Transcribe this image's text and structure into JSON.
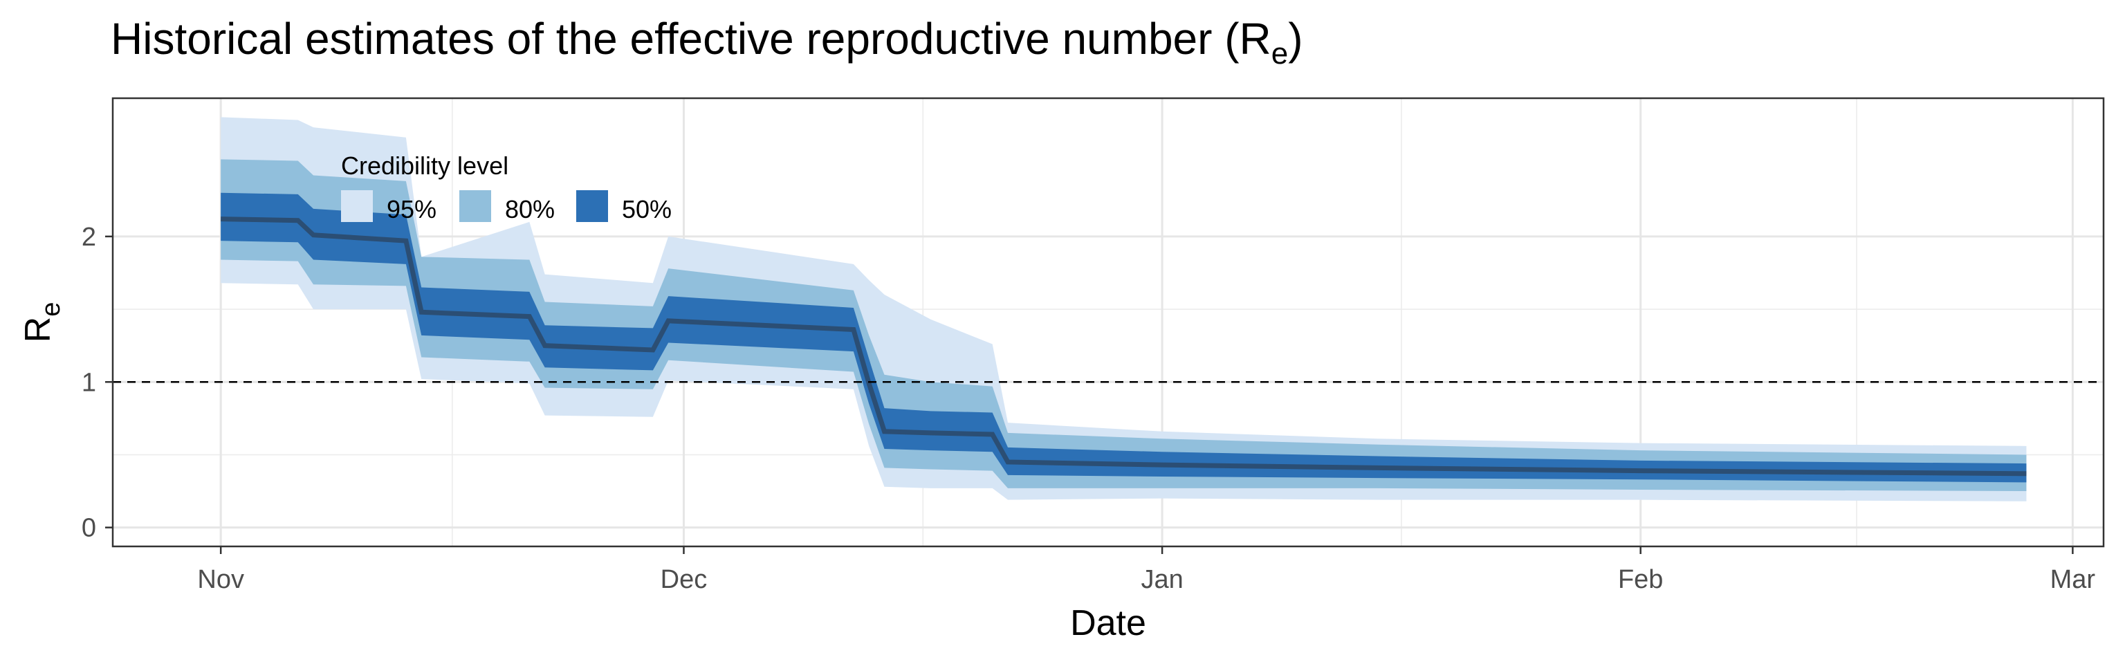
{
  "chart_data": {
    "type": "area",
    "title": "Historical estimates of the effective reproductive number (R",
    "title_subscript": "e",
    "title_close": ")",
    "xlabel": "Date",
    "ylabel": "R",
    "ylabel_subscript": "e",
    "x_ticks": [
      {
        "label": "Nov",
        "date": "2020-11-01"
      },
      {
        "label": "Dec",
        "date": "2020-12-01"
      },
      {
        "label": "Jan",
        "date": "2021-01-01"
      },
      {
        "label": "Feb",
        "date": "2021-02-01"
      },
      {
        "label": "Mar",
        "date": "2021-03-01"
      }
    ],
    "xlim": [
      "2020-10-25",
      "2021-03-03"
    ],
    "y_ticks": [
      0,
      1,
      2
    ],
    "ylim": [
      -0.13,
      2.95
    ],
    "reference_line": {
      "y": 1,
      "style": "dashed"
    },
    "grid": true,
    "legend": {
      "title": "Credibility level",
      "placement": "top-left",
      "entries": [
        {
          "label": "95%",
          "color": "#d6e5f5"
        },
        {
          "label": "80%",
          "color": "#91bfdc"
        },
        {
          "label": "50%",
          "color": "#2c70b5"
        }
      ]
    },
    "colors": {
      "ci95": "#d6e5f5",
      "ci80": "#91bfdc",
      "ci50": "#2c70b5",
      "median": "#2b4e74"
    },
    "series": [
      {
        "date": "2020-11-01",
        "median": 2.12,
        "lo50": 1.97,
        "hi50": 2.3,
        "lo80": 1.84,
        "hi80": 2.53,
        "lo95": 1.68,
        "hi95": 2.82
      },
      {
        "date": "2020-11-06",
        "median": 2.11,
        "lo50": 1.96,
        "hi50": 2.29,
        "lo80": 1.83,
        "hi80": 2.52,
        "lo95": 1.67,
        "hi95": 2.8
      },
      {
        "date": "2020-11-07",
        "median": 2.01,
        "lo50": 1.84,
        "hi50": 2.19,
        "lo80": 1.67,
        "hi80": 2.42,
        "lo95": 1.5,
        "hi95": 2.75
      },
      {
        "date": "2020-11-13",
        "median": 1.97,
        "lo50": 1.81,
        "hi50": 2.15,
        "lo80": 1.66,
        "hi80": 2.38,
        "lo95": 1.5,
        "hi95": 2.68
      },
      {
        "date": "2020-11-14",
        "median": 1.48,
        "lo50": 1.32,
        "hi50": 1.65,
        "lo80": 1.17,
        "hi80": 1.86,
        "lo95": 1.02,
        "hi95": 1.86
      },
      {
        "date": "2020-11-21",
        "median": 1.45,
        "lo50": 1.29,
        "hi50": 1.62,
        "lo80": 1.14,
        "hi80": 1.84,
        "lo95": 0.99,
        "hi95": 2.1
      },
      {
        "date": "2020-11-22",
        "median": 1.25,
        "lo50": 1.1,
        "hi50": 1.39,
        "lo80": 0.96,
        "hi80": 1.55,
        "lo95": 0.77,
        "hi95": 1.74
      },
      {
        "date": "2020-11-29",
        "median": 1.22,
        "lo50": 1.08,
        "hi50": 1.37,
        "lo80": 0.95,
        "hi80": 1.52,
        "lo95": 0.76,
        "hi95": 1.68
      },
      {
        "date": "2020-11-30",
        "median": 1.42,
        "lo50": 1.27,
        "hi50": 1.59,
        "lo80": 1.15,
        "hi80": 1.78,
        "lo95": 1.01,
        "hi95": 2.0
      },
      {
        "date": "2020-12-12",
        "median": 1.36,
        "lo50": 1.21,
        "hi50": 1.51,
        "lo80": 1.07,
        "hi80": 1.63,
        "lo95": 0.95,
        "hi95": 1.81
      },
      {
        "date": "2020-12-13",
        "median": 0.99,
        "lo50": 0.85,
        "hi50": 1.16,
        "lo80": 0.71,
        "hi80": 1.32,
        "lo95": 0.56,
        "hi95": 1.7
      },
      {
        "date": "2020-12-14",
        "median": 0.66,
        "lo50": 0.54,
        "hi50": 0.82,
        "lo80": 0.41,
        "hi80": 1.05,
        "lo95": 0.28,
        "hi95": 1.6
      },
      {
        "date": "2020-12-17",
        "median": 0.65,
        "lo50": 0.53,
        "hi50": 0.8,
        "lo80": 0.4,
        "hi80": 1.0,
        "lo95": 0.27,
        "hi95": 1.43
      },
      {
        "date": "2020-12-21",
        "median": 0.64,
        "lo50": 0.52,
        "hi50": 0.79,
        "lo80": 0.39,
        "hi80": 0.97,
        "lo95": 0.27,
        "hi95": 1.26
      },
      {
        "date": "2020-12-22",
        "median": 0.45,
        "lo50": 0.36,
        "hi50": 0.55,
        "lo80": 0.27,
        "hi80": 0.65,
        "lo95": 0.19,
        "hi95": 0.72
      },
      {
        "date": "2021-01-01",
        "median": 0.43,
        "lo50": 0.35,
        "hi50": 0.52,
        "lo80": 0.27,
        "hi80": 0.61,
        "lo95": 0.2,
        "hi95": 0.66
      },
      {
        "date": "2021-01-15",
        "median": 0.41,
        "lo50": 0.34,
        "hi50": 0.49,
        "lo80": 0.27,
        "hi80": 0.57,
        "lo95": 0.19,
        "hi95": 0.61
      },
      {
        "date": "2021-02-01",
        "median": 0.39,
        "lo50": 0.33,
        "hi50": 0.46,
        "lo80": 0.26,
        "hi80": 0.53,
        "lo95": 0.19,
        "hi95": 0.58
      },
      {
        "date": "2021-02-26",
        "median": 0.37,
        "lo50": 0.31,
        "hi50": 0.44,
        "lo80": 0.25,
        "hi80": 0.5,
        "lo95": 0.18,
        "hi95": 0.56
      }
    ]
  }
}
